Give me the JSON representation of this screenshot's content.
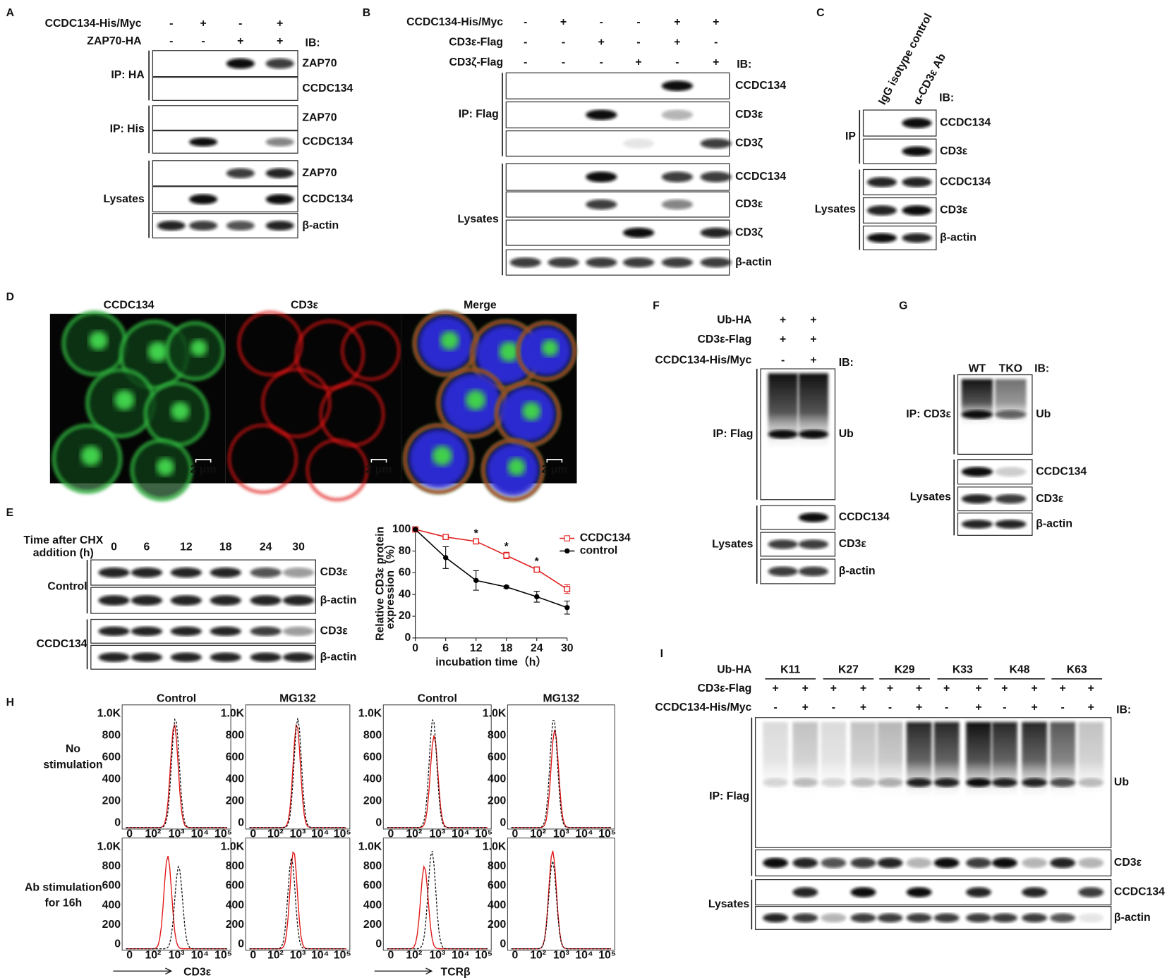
{
  "figure": {
    "A": {
      "letter": "A",
      "conditions": [
        {
          "label": "CCDC134-His/Myc",
          "signs": [
            "-",
            "+",
            "-",
            "+"
          ]
        },
        {
          "label": "ZAP70-HA",
          "signs": [
            "-",
            "-",
            "+",
            "+"
          ]
        }
      ],
      "ib": "IB:",
      "groups": [
        {
          "label": "IP: HA",
          "blots": [
            "ZAP70",
            "CCDC134"
          ]
        },
        {
          "label": "IP: His",
          "blots": [
            "ZAP70",
            "CCDC134"
          ]
        },
        {
          "label": "Lysates",
          "blots": [
            "ZAP70",
            "CCDC134",
            "β-actin"
          ]
        }
      ]
    },
    "B": {
      "letter": "B",
      "conditions": [
        {
          "label": "CCDC134-His/Myc",
          "signs": [
            "-",
            "+",
            "-",
            "-",
            "+",
            "+"
          ]
        },
        {
          "label": "CD3ε-Flag",
          "signs": [
            "-",
            "-",
            "+",
            "-",
            "+",
            "-"
          ]
        },
        {
          "label": "CD3ζ-Flag",
          "signs": [
            "-",
            "-",
            "-",
            "+",
            "-",
            "+"
          ]
        }
      ],
      "ib": "IB:",
      "groups": [
        {
          "label": "IP: Flag",
          "blots": [
            "CCDC134",
            "CD3ε",
            "CD3ζ"
          ]
        },
        {
          "label": "Lysates",
          "blots": [
            "CCDC134",
            "CD3ε",
            "CD3ζ",
            "β-actin"
          ]
        }
      ]
    },
    "C": {
      "letter": "C",
      "columns": [
        "IgG isotype control",
        "α-CD3ε Ab"
      ],
      "ib": "IB:",
      "groups": [
        {
          "label": "IP",
          "blots": [
            "CCDC134",
            "CD3ε"
          ]
        },
        {
          "label": "Lysates",
          "blots": [
            "CCDC134",
            "CD3ε",
            "β-actin"
          ]
        }
      ]
    },
    "D": {
      "letter": "D",
      "channels": [
        "CCDC134",
        "CD3ε",
        "Merge"
      ],
      "scale_bar": "2 μm"
    },
    "E": {
      "letter": "E",
      "time_header": [
        "Time after CHX",
        "addition (h)"
      ],
      "columns": [
        "0",
        "6",
        "12",
        "18",
        "24",
        "30"
      ],
      "groups": [
        {
          "label": "Control",
          "blots": [
            "CD3ε",
            "β-actin"
          ]
        },
        {
          "label": "CCDC134",
          "blots": [
            "CD3ε",
            "β-actin"
          ]
        }
      ]
    },
    "F": {
      "letter": "F",
      "conditions": [
        {
          "label": "Ub-HA",
          "signs": [
            "+",
            "+"
          ]
        },
        {
          "label": "CD3ε-Flag",
          "signs": [
            "+",
            "+"
          ]
        },
        {
          "label": "CCDC134-His/Myc",
          "signs": [
            "-",
            "+"
          ]
        }
      ],
      "ib": "IB:",
      "groups": [
        {
          "label": "IP: Flag",
          "blots": [
            "Ub"
          ]
        },
        {
          "label": "Lysates",
          "blots": [
            "CCDC134",
            "CD3ε",
            "β-actin"
          ]
        }
      ]
    },
    "G": {
      "letter": "G",
      "columns": [
        "WT",
        "TKO"
      ],
      "ib": "IB:",
      "groups": [
        {
          "label": "IP: CD3ε",
          "blots": [
            "Ub"
          ]
        },
        {
          "label": "Lysates",
          "blots": [
            "CCDC134",
            "CD3ε",
            "β-actin"
          ]
        }
      ]
    },
    "H": {
      "letter": "H",
      "columns": [
        "Control",
        "MG132",
        "Control",
        "MG132"
      ],
      "rows": [
        [
          "No",
          "stimulation"
        ],
        [
          "Ab stimulation",
          "for 16h"
        ]
      ],
      "axes": [
        "CD3ε",
        "TCRβ"
      ],
      "yticks": [
        "0",
        "200",
        "400",
        "600",
        "800",
        "1.0K"
      ],
      "xticks": [
        "0",
        "10²",
        "10³",
        "10⁴",
        "10⁵"
      ]
    },
    "I": {
      "letter": "I",
      "ub_label": "Ub-HA",
      "ub_types": [
        "K11",
        "K27",
        "K29",
        "K33",
        "K48",
        "K63"
      ],
      "conditions": [
        {
          "label": "CD3ε-Flag",
          "signs": [
            "+",
            "+",
            "+",
            "+",
            "+",
            "+",
            "+",
            "+",
            "+",
            "+",
            "+",
            "+"
          ]
        },
        {
          "label": "CCDC134-His/Myc",
          "signs": [
            "-",
            "+",
            "-",
            "+",
            "-",
            "+",
            "-",
            "+",
            "-",
            "+",
            "-",
            "+"
          ]
        }
      ],
      "ib": "IB:",
      "groups": [
        {
          "label": "IP: Flag",
          "blots": [
            "Ub",
            "CD3ε"
          ]
        },
        {
          "label": "Lysates",
          "blots": [
            "CCDC134",
            "β-actin"
          ]
        }
      ]
    }
  },
  "chart_data": {
    "type": "line",
    "xlabel": "incubation time（h）",
    "ylabel": [
      "Relative CD3ε protein",
      "expression（%）"
    ],
    "x": [
      0,
      6,
      12,
      18,
      24,
      30
    ],
    "xlim": [
      0,
      30
    ],
    "xticks": [
      0,
      6,
      12,
      18,
      24,
      30
    ],
    "ylim": [
      0,
      100
    ],
    "yticks": [
      0,
      20,
      40,
      60,
      80,
      100
    ],
    "legend": "upper right",
    "series": [
      {
        "name": "CCDC134",
        "color": "#e02020",
        "marker": "square-open",
        "values": [
          100,
          93,
          89,
          76,
          63,
          45
        ],
        "errors": [
          0,
          1,
          2,
          3,
          2,
          4
        ],
        "annotations": [
          null,
          null,
          "*",
          "*",
          "*",
          null
        ]
      },
      {
        "name": "control",
        "color": "#000000",
        "marker": "circle",
        "values": [
          100,
          74,
          53,
          47,
          38,
          28
        ],
        "errors": [
          0,
          10,
          9,
          1,
          5,
          6
        ]
      }
    ]
  }
}
